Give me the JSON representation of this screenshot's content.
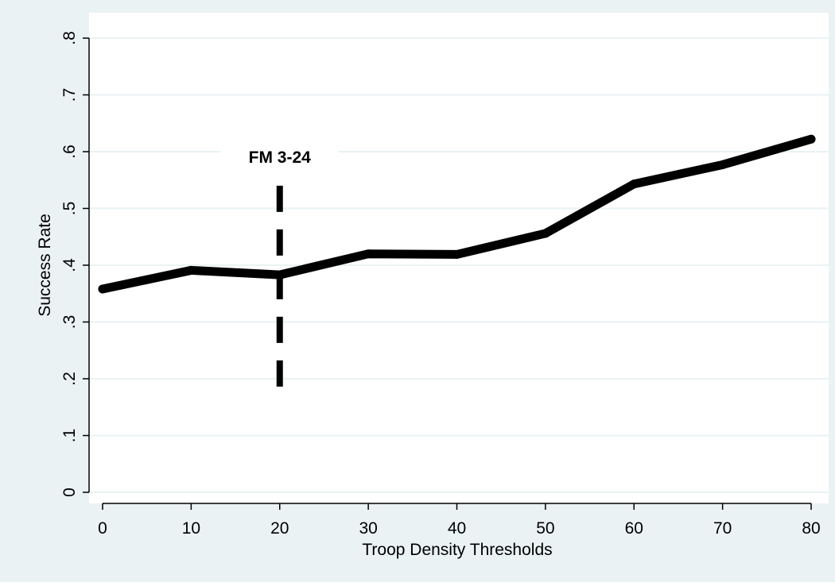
{
  "colors": {
    "outer_background": "#eaf2f3",
    "plot_background": "#ffffff",
    "gridline": "#eaf2f3",
    "series_line": "#000000",
    "reference_line": "#000000"
  },
  "chart_data": {
    "type": "line",
    "title": "",
    "xlabel": "Troop Density Thresholds",
    "ylabel": "Success Rate",
    "xlim": [
      0,
      80
    ],
    "ylim": [
      0,
      0.8
    ],
    "x_ticks": [
      0,
      10,
      20,
      30,
      40,
      50,
      60,
      70,
      80
    ],
    "x_tick_labels": [
      "0",
      "10",
      "20",
      "30",
      "40",
      "50",
      "60",
      "70",
      "80"
    ],
    "y_ticks": [
      0,
      0.1,
      0.2,
      0.3,
      0.4,
      0.5,
      0.6,
      0.7,
      0.8
    ],
    "y_tick_labels": [
      "0",
      ".1",
      ".2",
      ".3",
      ".4",
      ".5",
      ".6",
      ".7",
      ".8"
    ],
    "grid": true,
    "legend": "none",
    "series": [
      {
        "x": [
          0,
          10,
          20,
          30,
          40,
          50,
          60,
          70,
          80
        ],
        "values": [
          0.358,
          0.391,
          0.383,
          0.42,
          0.419,
          0.456,
          0.543,
          0.577,
          0.622
        ]
      }
    ],
    "annotations": [
      {
        "type": "vertical-dashed-line",
        "x": 20,
        "y_from": 0.18,
        "y_to": 0.54,
        "label": "FM 3-24"
      }
    ]
  }
}
